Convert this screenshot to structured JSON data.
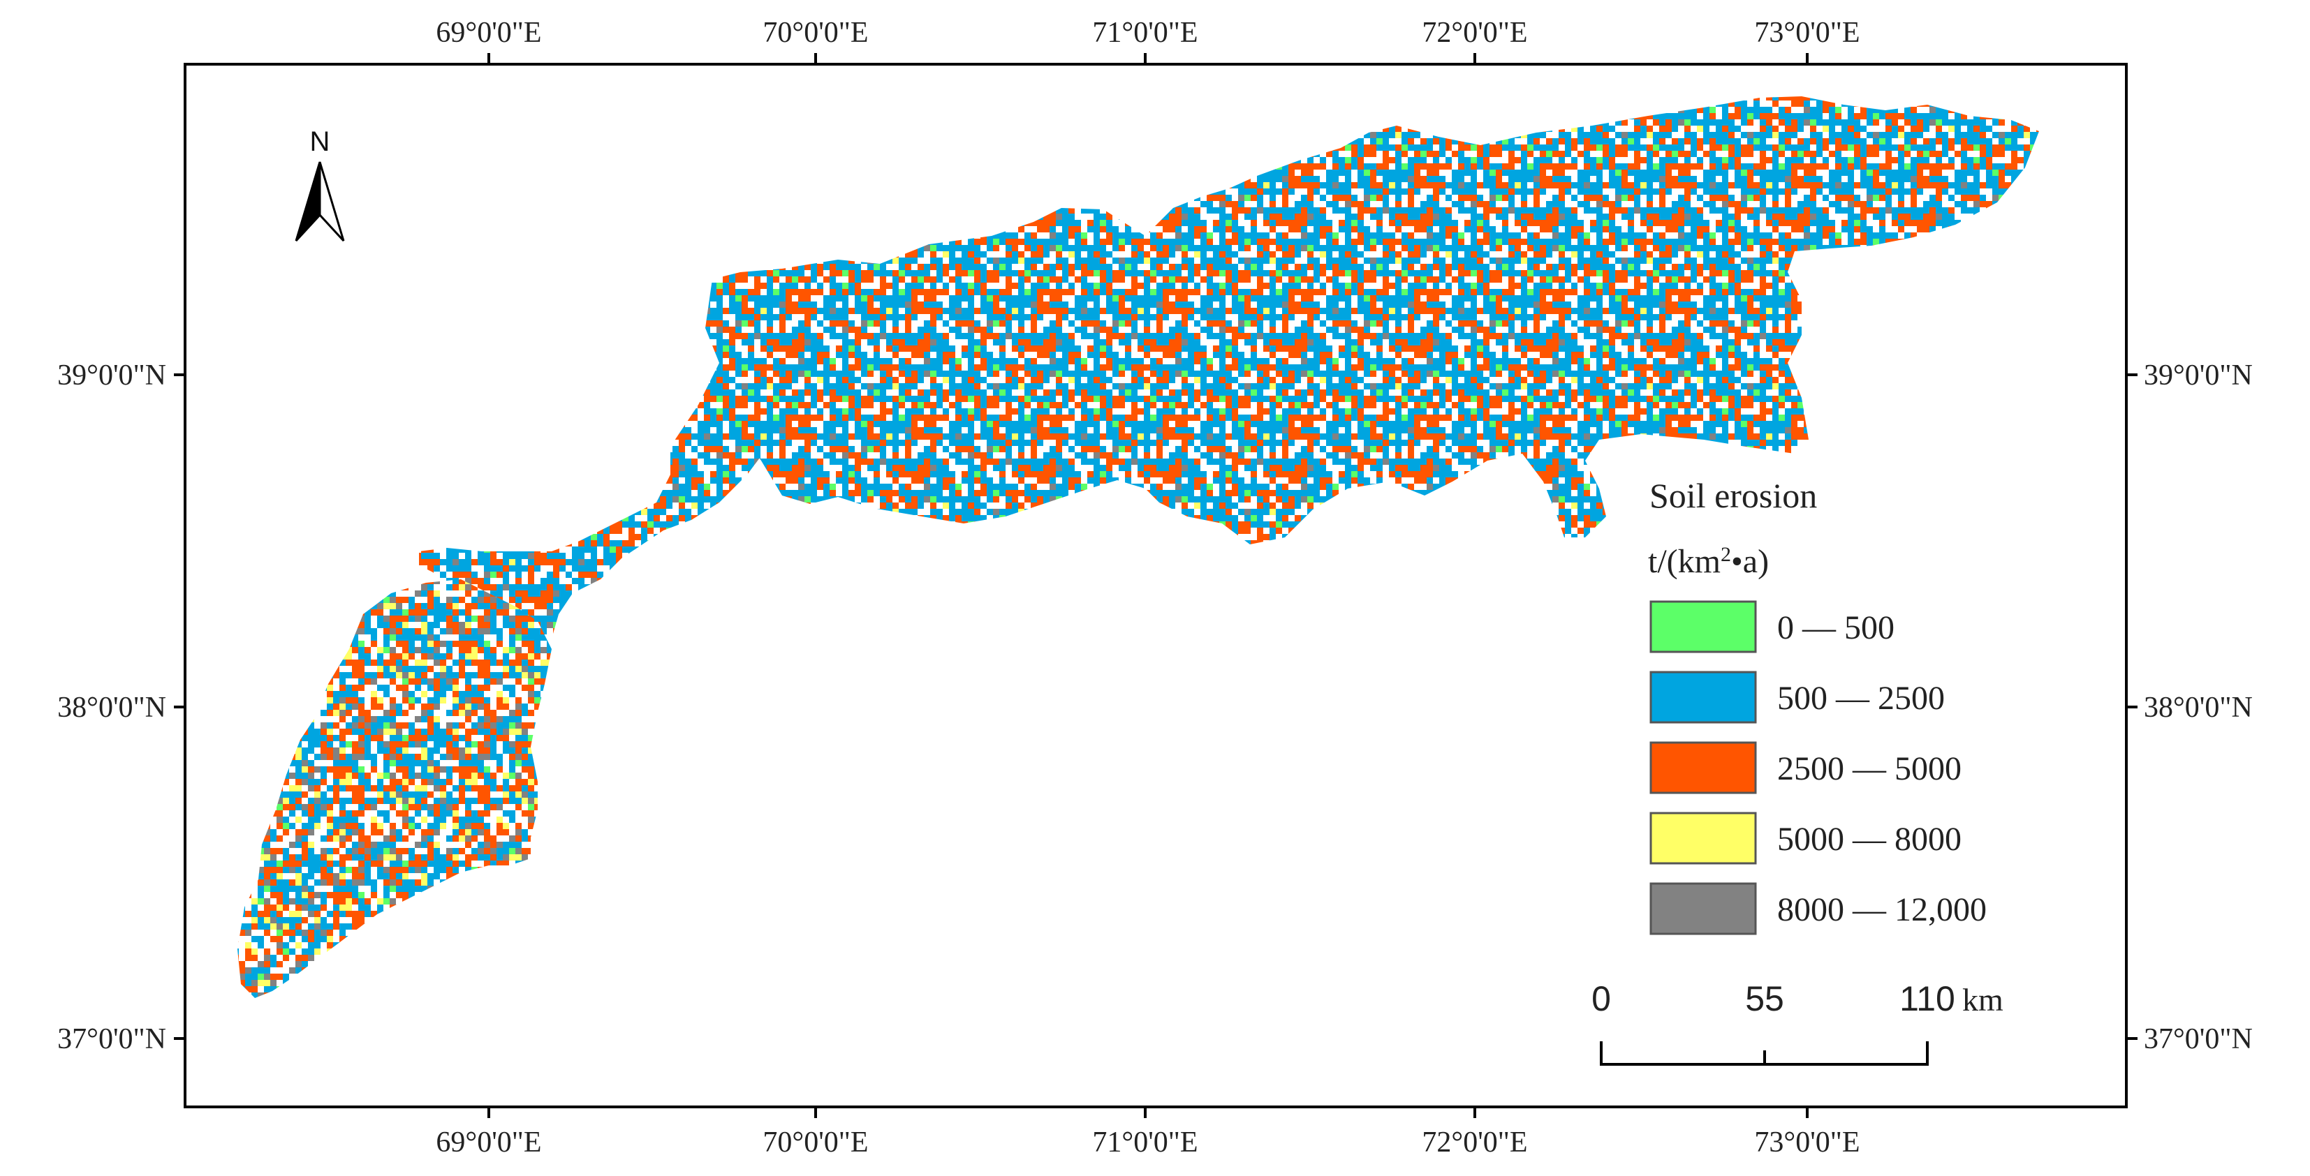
{
  "map": {
    "top_ticks": [
      "69°0'0\"E",
      "70°0'0\"E",
      "71°0'0\"E",
      "72°0'0\"E",
      "73°0'0\"E"
    ],
    "bottom_ticks": [
      "69°0'0\"E",
      "70°0'0\"E",
      "71°0'0\"E",
      "72°0'0\"E",
      "73°0'0\"E"
    ],
    "left_ticks": [
      "39°0'0\"N",
      "38°0'0\"N",
      "37°0'0\"N"
    ],
    "right_ticks": [
      "39°0'0\"N",
      "38°0'0\"N",
      "37°0'0\"N"
    ],
    "north_label": "N"
  },
  "legend": {
    "title": "Soil erosion",
    "unit_prefix": "t/(km",
    "unit_sup": "2",
    "unit_suffix": "•a)",
    "classes": [
      {
        "label": "0 — 500",
        "color": "#5CFF68"
      },
      {
        "label": "500 — 2500",
        "color": "#00A5E0"
      },
      {
        "label": "2500 — 5000",
        "color": "#FF5500"
      },
      {
        "label": "5000 — 8000",
        "color": "#FFFF66"
      },
      {
        "label": "8000 — 12,000",
        "color": "#828282"
      }
    ]
  },
  "scalebar": {
    "labels": [
      "0",
      "55",
      "110"
    ],
    "unit": "km"
  }
}
